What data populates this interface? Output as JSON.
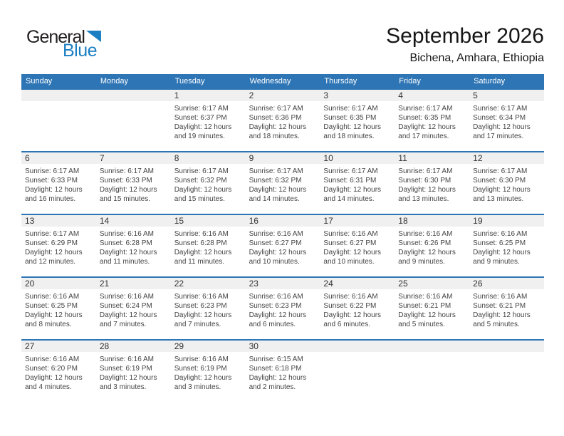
{
  "logo": {
    "word1": "General",
    "word2": "Blue"
  },
  "header": {
    "title": "September 2026",
    "location": "Bichena, Amhara, Ethiopia"
  },
  "colors": {
    "header_blue": "#2E75B5",
    "week_line_blue": "#2E75B5",
    "number_band_gray": "#F0F0F0",
    "logo_blue": "#1B7EC2",
    "logo_dark": "#231F20"
  },
  "calendar": {
    "day_headers": [
      "Sunday",
      "Monday",
      "Tuesday",
      "Wednesday",
      "Thursday",
      "Friday",
      "Saturday"
    ],
    "weeks": [
      [
        null,
        null,
        {
          "day": "1",
          "lines": [
            "Sunrise: 6:17 AM",
            "Sunset: 6:37 PM",
            "Daylight: 12 hours",
            "and 19 minutes."
          ]
        },
        {
          "day": "2",
          "lines": [
            "Sunrise: 6:17 AM",
            "Sunset: 6:36 PM",
            "Daylight: 12 hours",
            "and 18 minutes."
          ]
        },
        {
          "day": "3",
          "lines": [
            "Sunrise: 6:17 AM",
            "Sunset: 6:35 PM",
            "Daylight: 12 hours",
            "and 18 minutes."
          ]
        },
        {
          "day": "4",
          "lines": [
            "Sunrise: 6:17 AM",
            "Sunset: 6:35 PM",
            "Daylight: 12 hours",
            "and 17 minutes."
          ]
        },
        {
          "day": "5",
          "lines": [
            "Sunrise: 6:17 AM",
            "Sunset: 6:34 PM",
            "Daylight: 12 hours",
            "and 17 minutes."
          ]
        }
      ],
      [
        {
          "day": "6",
          "lines": [
            "Sunrise: 6:17 AM",
            "Sunset: 6:33 PM",
            "Daylight: 12 hours",
            "and 16 minutes."
          ]
        },
        {
          "day": "7",
          "lines": [
            "Sunrise: 6:17 AM",
            "Sunset: 6:33 PM",
            "Daylight: 12 hours",
            "and 15 minutes."
          ]
        },
        {
          "day": "8",
          "lines": [
            "Sunrise: 6:17 AM",
            "Sunset: 6:32 PM",
            "Daylight: 12 hours",
            "and 15 minutes."
          ]
        },
        {
          "day": "9",
          "lines": [
            "Sunrise: 6:17 AM",
            "Sunset: 6:32 PM",
            "Daylight: 12 hours",
            "and 14 minutes."
          ]
        },
        {
          "day": "10",
          "lines": [
            "Sunrise: 6:17 AM",
            "Sunset: 6:31 PM",
            "Daylight: 12 hours",
            "and 14 minutes."
          ]
        },
        {
          "day": "11",
          "lines": [
            "Sunrise: 6:17 AM",
            "Sunset: 6:30 PM",
            "Daylight: 12 hours",
            "and 13 minutes."
          ]
        },
        {
          "day": "12",
          "lines": [
            "Sunrise: 6:17 AM",
            "Sunset: 6:30 PM",
            "Daylight: 12 hours",
            "and 13 minutes."
          ]
        }
      ],
      [
        {
          "day": "13",
          "lines": [
            "Sunrise: 6:17 AM",
            "Sunset: 6:29 PM",
            "Daylight: 12 hours",
            "and 12 minutes."
          ]
        },
        {
          "day": "14",
          "lines": [
            "Sunrise: 6:16 AM",
            "Sunset: 6:28 PM",
            "Daylight: 12 hours",
            "and 11 minutes."
          ]
        },
        {
          "day": "15",
          "lines": [
            "Sunrise: 6:16 AM",
            "Sunset: 6:28 PM",
            "Daylight: 12 hours",
            "and 11 minutes."
          ]
        },
        {
          "day": "16",
          "lines": [
            "Sunrise: 6:16 AM",
            "Sunset: 6:27 PM",
            "Daylight: 12 hours",
            "and 10 minutes."
          ]
        },
        {
          "day": "17",
          "lines": [
            "Sunrise: 6:16 AM",
            "Sunset: 6:27 PM",
            "Daylight: 12 hours",
            "and 10 minutes."
          ]
        },
        {
          "day": "18",
          "lines": [
            "Sunrise: 6:16 AM",
            "Sunset: 6:26 PM",
            "Daylight: 12 hours",
            "and 9 minutes."
          ]
        },
        {
          "day": "19",
          "lines": [
            "Sunrise: 6:16 AM",
            "Sunset: 6:25 PM",
            "Daylight: 12 hours",
            "and 9 minutes."
          ]
        }
      ],
      [
        {
          "day": "20",
          "lines": [
            "Sunrise: 6:16 AM",
            "Sunset: 6:25 PM",
            "Daylight: 12 hours",
            "and 8 minutes."
          ]
        },
        {
          "day": "21",
          "lines": [
            "Sunrise: 6:16 AM",
            "Sunset: 6:24 PM",
            "Daylight: 12 hours",
            "and 7 minutes."
          ]
        },
        {
          "day": "22",
          "lines": [
            "Sunrise: 6:16 AM",
            "Sunset: 6:23 PM",
            "Daylight: 12 hours",
            "and 7 minutes."
          ]
        },
        {
          "day": "23",
          "lines": [
            "Sunrise: 6:16 AM",
            "Sunset: 6:23 PM",
            "Daylight: 12 hours",
            "and 6 minutes."
          ]
        },
        {
          "day": "24",
          "lines": [
            "Sunrise: 6:16 AM",
            "Sunset: 6:22 PM",
            "Daylight: 12 hours",
            "and 6 minutes."
          ]
        },
        {
          "day": "25",
          "lines": [
            "Sunrise: 6:16 AM",
            "Sunset: 6:21 PM",
            "Daylight: 12 hours",
            "and 5 minutes."
          ]
        },
        {
          "day": "26",
          "lines": [
            "Sunrise: 6:16 AM",
            "Sunset: 6:21 PM",
            "Daylight: 12 hours",
            "and 5 minutes."
          ]
        }
      ],
      [
        {
          "day": "27",
          "lines": [
            "Sunrise: 6:16 AM",
            "Sunset: 6:20 PM",
            "Daylight: 12 hours",
            "and 4 minutes."
          ]
        },
        {
          "day": "28",
          "lines": [
            "Sunrise: 6:16 AM",
            "Sunset: 6:19 PM",
            "Daylight: 12 hours",
            "and 3 minutes."
          ]
        },
        {
          "day": "29",
          "lines": [
            "Sunrise: 6:16 AM",
            "Sunset: 6:19 PM",
            "Daylight: 12 hours",
            "and 3 minutes."
          ]
        },
        {
          "day": "30",
          "lines": [
            "Sunrise: 6:15 AM",
            "Sunset: 6:18 PM",
            "Daylight: 12 hours",
            "and 2 minutes."
          ]
        },
        null,
        null,
        null
      ]
    ]
  }
}
